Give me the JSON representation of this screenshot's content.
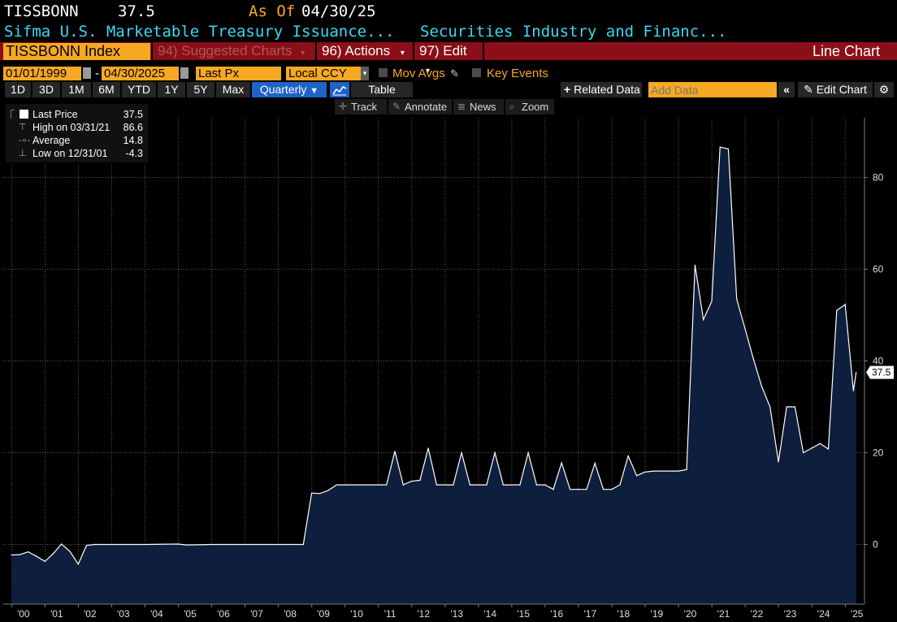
{
  "header": {
    "ticker": "TISSBONN",
    "price": "37.5",
    "as_of_label": "As Of",
    "as_of_date": "04/30/25",
    "description": "Sifma U.S. Marketable Treasury Issuance...",
    "source": "Securities Industry and Financ..."
  },
  "menubar": {
    "security": "TISSBONN Index",
    "suggested": "94) Suggested Charts",
    "actions": "96) Actions",
    "edit": "97) Edit",
    "chart_type": "Line Chart"
  },
  "settings": {
    "start_date": "01/01/1999",
    "dash": "-",
    "end_date": "04/30/2025",
    "field": "Last Px",
    "currency": "Local CCY",
    "mov_avgs": "Mov Avgs",
    "key_events": "Key Events"
  },
  "periods": [
    "1D",
    "3D",
    "1M",
    "6M",
    "YTD",
    "1Y",
    "5Y",
    "Max"
  ],
  "frequency": "Quarterly",
  "table_label": "Table",
  "related_data": "Related Data",
  "add_data_placeholder": "Add Data",
  "edit_chart": "Edit Chart",
  "tools": [
    "Track",
    "Annotate",
    "News",
    "Zoom"
  ],
  "legend": {
    "last_label": "Last Price",
    "last_value": "37.5",
    "high_label": "High on 03/31/21",
    "high_value": "86.6",
    "avg_label": "Average",
    "avg_value": "14.8",
    "low_label": "Low on 12/31/01",
    "low_value": "-4.3"
  },
  "colors": {
    "accent": "#f7a823",
    "menubar": "#8a0f18",
    "area_fill": "#0e1f3d",
    "line": "#ffffff",
    "header_text": "#3fd6f2"
  },
  "chart_data": {
    "type": "area",
    "title": "",
    "xlabel": "",
    "ylabel": "",
    "ylim": [
      -13,
      93
    ],
    "yticks": [
      0,
      20,
      40,
      60,
      80
    ],
    "xlim": [
      "1999-10-01",
      "2025-07-31"
    ],
    "xticks": [
      "'00",
      "'01",
      "'02",
      "'03",
      "'04",
      "'05",
      "'06",
      "'07",
      "'08",
      "'09",
      "'10",
      "'11",
      "'12",
      "'13",
      "'14",
      "'15",
      "'16",
      "'17",
      "'18",
      "'19",
      "'20",
      "'21",
      "'22",
      "'23",
      "'24",
      "'25"
    ],
    "last_value_label": "37.5",
    "series": [
      {
        "points": [
          [
            "1999-12-31",
            -2.3
          ],
          [
            "2000-03-31",
            -2.2
          ],
          [
            "2000-06-30",
            -1.6
          ],
          [
            "2000-09-30",
            -2.6
          ],
          [
            "2000-12-31",
            -3.7
          ],
          [
            "2001-03-31",
            -2.0
          ],
          [
            "2001-06-30",
            0.1
          ],
          [
            "2001-09-30",
            -1.5
          ],
          [
            "2001-12-31",
            -4.3
          ],
          [
            "2002-03-31",
            -0.2
          ],
          [
            "2002-06-30",
            0.0
          ],
          [
            "2002-12-31",
            0.0
          ],
          [
            "2003-12-31",
            0.0
          ],
          [
            "2004-12-31",
            0.1
          ],
          [
            "2005-03-31",
            -0.1
          ],
          [
            "2005-12-31",
            0.0
          ],
          [
            "2006-12-31",
            0.0
          ],
          [
            "2007-12-31",
            0.0
          ],
          [
            "2008-06-30",
            0.0
          ],
          [
            "2008-09-30",
            0.0
          ],
          [
            "2008-12-31",
            11.2
          ],
          [
            "2009-03-31",
            11.1
          ],
          [
            "2009-06-30",
            11.8
          ],
          [
            "2009-09-30",
            13.0
          ],
          [
            "2009-12-31",
            13.0
          ],
          [
            "2010-06-30",
            13.0
          ],
          [
            "2010-12-31",
            13.0
          ],
          [
            "2011-03-31",
            13.0
          ],
          [
            "2011-06-30",
            20.3
          ],
          [
            "2011-09-30",
            13.0
          ],
          [
            "2011-12-31",
            13.8
          ],
          [
            "2012-03-31",
            14.0
          ],
          [
            "2012-06-30",
            21.0
          ],
          [
            "2012-09-30",
            13.0
          ],
          [
            "2012-12-31",
            13.0
          ],
          [
            "2013-03-31",
            13.0
          ],
          [
            "2013-06-30",
            20.0
          ],
          [
            "2013-09-30",
            13.0
          ],
          [
            "2013-12-31",
            13.0
          ],
          [
            "2014-03-31",
            13.0
          ],
          [
            "2014-06-30",
            20.0
          ],
          [
            "2014-09-30",
            13.0
          ],
          [
            "2014-12-31",
            13.0
          ],
          [
            "2015-03-31",
            13.0
          ],
          [
            "2015-06-30",
            20.0
          ],
          [
            "2015-09-30",
            13.0
          ],
          [
            "2015-12-31",
            13.0
          ],
          [
            "2016-03-31",
            12.0
          ],
          [
            "2016-06-30",
            17.8
          ],
          [
            "2016-09-30",
            12.0
          ],
          [
            "2016-12-31",
            12.0
          ],
          [
            "2017-03-31",
            12.0
          ],
          [
            "2017-06-30",
            17.7
          ],
          [
            "2017-09-30",
            12.0
          ],
          [
            "2017-12-31",
            12.0
          ],
          [
            "2018-03-31",
            13.0
          ],
          [
            "2018-06-30",
            19.3
          ],
          [
            "2018-09-30",
            15.0
          ],
          [
            "2018-12-31",
            15.8
          ],
          [
            "2019-03-31",
            16.0
          ],
          [
            "2019-06-30",
            16.0
          ],
          [
            "2019-12-31",
            16.0
          ],
          [
            "2020-03-31",
            16.3
          ],
          [
            "2020-06-30",
            60.9
          ],
          [
            "2020-09-30",
            49.0
          ],
          [
            "2020-12-31",
            53.0
          ],
          [
            "2021-03-31",
            86.6
          ],
          [
            "2021-06-30",
            86.2
          ],
          [
            "2021-09-30",
            53.5
          ],
          [
            "2021-12-31",
            47.0
          ],
          [
            "2022-03-31",
            40.5
          ],
          [
            "2022-06-30",
            34.5
          ],
          [
            "2022-09-30",
            30.0
          ],
          [
            "2022-12-31",
            18.0
          ],
          [
            "2023-03-31",
            30.0
          ],
          [
            "2023-06-30",
            30.0
          ],
          [
            "2023-09-30",
            20.0
          ],
          [
            "2023-12-31",
            21.0
          ],
          [
            "2024-03-31",
            22.0
          ],
          [
            "2024-06-30",
            20.8
          ],
          [
            "2024-09-30",
            51.0
          ],
          [
            "2024-12-31",
            52.3
          ],
          [
            "2025-03-31",
            33.5
          ],
          [
            "2025-04-30",
            37.5
          ]
        ]
      }
    ]
  }
}
